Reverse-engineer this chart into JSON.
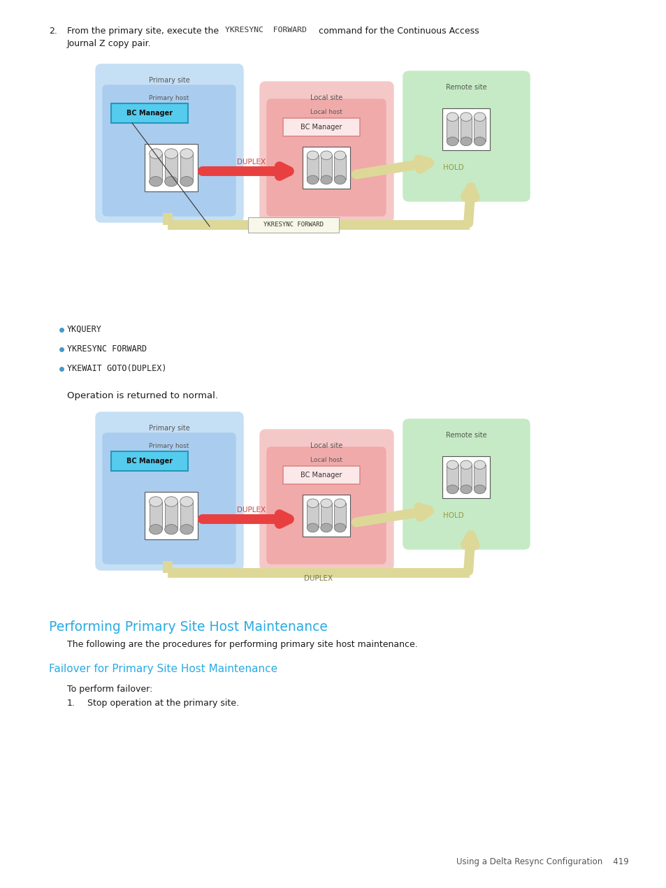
{
  "bg_color": "#ffffff",
  "page_width": 9.54,
  "page_height": 12.71,
  "text_color": "#1a1a1a",
  "cyan_color": "#29abe2",
  "mono_color": "#333333",
  "bullet_color": "#4499cc",
  "bullets": [
    "YKQUERY",
    "YKRESYNC FORWARD",
    "YKEWAIT GOTO(DUPLEX)"
  ],
  "normal_text": "Operation is returned to normal.",
  "section_title": "Performing Primary Site Host Maintenance",
  "section_body": "The following are the procedures for performing primary site host maintenance.",
  "sub_title": "Failover for Primary Site Host Maintenance",
  "sub_body": "To perform failover:",
  "step1_text": "Stop operation at the primary site.",
  "footer": "Using a Delta Resync Configuration    419",
  "primary_site_color": "#c5dff5",
  "local_site_color": "#f5c8c8",
  "remote_site_color": "#c5eac5",
  "bc_manager_primary_color": "#55ccee",
  "duplex_arrow_color": "#e84040",
  "hold_arrow_color": "#ddd898",
  "connector_color": "#888888",
  "gray_line_color": "#555555"
}
